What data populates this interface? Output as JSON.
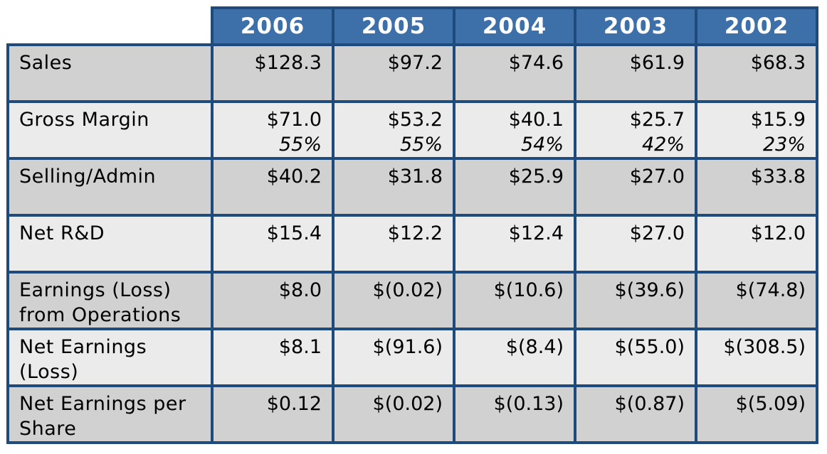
{
  "chart_data": {
    "type": "table",
    "columns": [
      "2006",
      "2005",
      "2004",
      "2003",
      "2002"
    ],
    "rows": [
      {
        "label": "Sales",
        "values": [
          "$128.3",
          "$97.2",
          "$74.6",
          "$61.9",
          "$68.3"
        ]
      },
      {
        "label": "Gross Margin",
        "values": [
          "$71.0",
          "$53.2",
          "$40.1",
          "$25.7",
          "$15.9"
        ],
        "percents": [
          "55%",
          "55%",
          "54%",
          "42%",
          "23%"
        ]
      },
      {
        "label": "Selling/Admin",
        "values": [
          "$40.2",
          "$31.8",
          "$25.9",
          "$27.0",
          "$33.8"
        ]
      },
      {
        "label": "Net R&D",
        "values": [
          "$15.4",
          "$12.2",
          "$12.4",
          "$27.0",
          "$12.0"
        ]
      },
      {
        "label": "Earnings (Loss) from Operations",
        "values": [
          "$8.0",
          "$(0.02)",
          "$(10.6)",
          "$(39.6)",
          "$(74.8)"
        ]
      },
      {
        "label": "Net Earnings (Loss)",
        "values": [
          "$8.1",
          "$(91.6)",
          "$(8.4)",
          "$(55.0)",
          "$(308.5)"
        ]
      },
      {
        "label": "Net Earnings per Share",
        "values": [
          "$0.12",
          "$(0.02)",
          "$(0.13)",
          "$(0.87)",
          "$(5.09)"
        ]
      }
    ]
  },
  "colors": {
    "header_fill": "#3d6fa8",
    "border": "#1f4a7c",
    "row_dark": "#d1d1d1",
    "row_light": "#ebebeb"
  }
}
